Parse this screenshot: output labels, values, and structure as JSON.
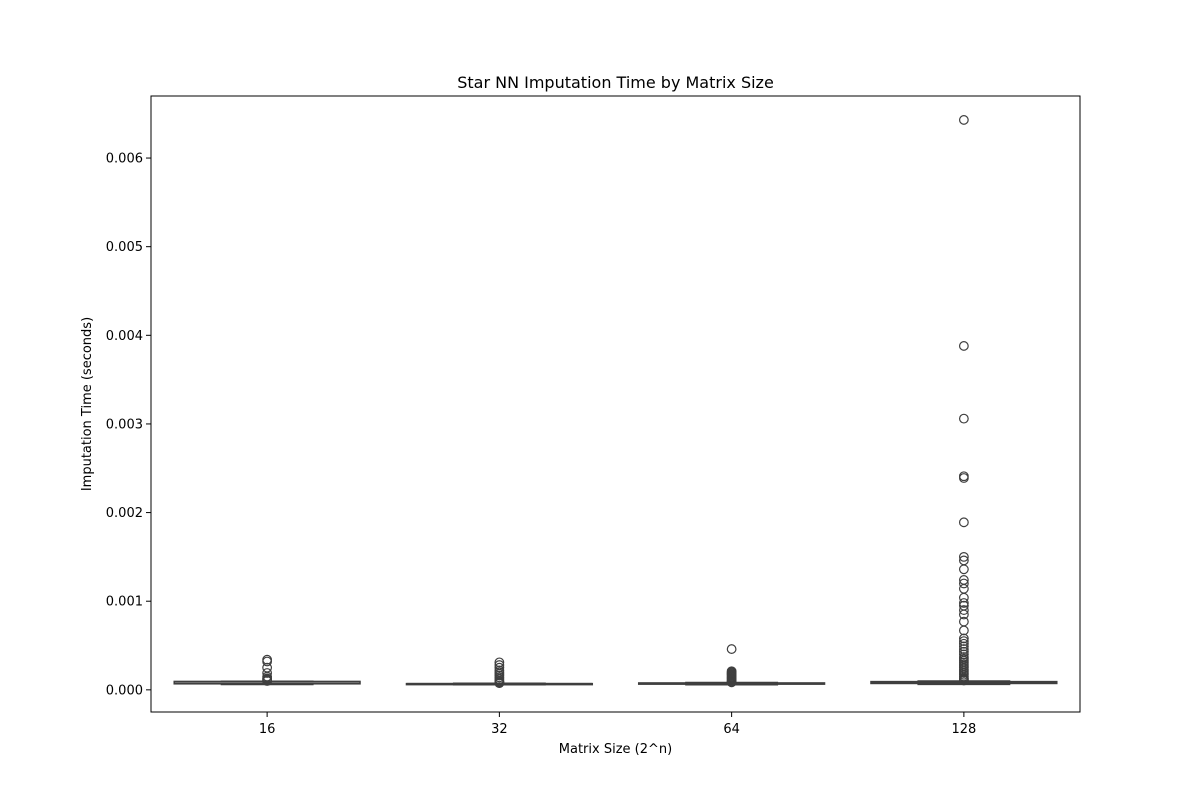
{
  "chart_data": {
    "type": "box",
    "title": "Star NN Imputation Time by Matrix Size",
    "xlabel": "Matrix Size (2^n)",
    "ylabel": "Imputation Time (seconds)",
    "categories": [
      "16",
      "32",
      "64",
      "128"
    ],
    "yticks": [
      0.0,
      0.001,
      0.002,
      0.003,
      0.004,
      0.005,
      0.006
    ],
    "ytick_labels": [
      "0.000",
      "0.001",
      "0.002",
      "0.003",
      "0.004",
      "0.005",
      "0.006"
    ],
    "ylim": [
      -0.00025,
      0.0067
    ],
    "grid": false,
    "colors": {
      "box_stroke": "#3f3f3f",
      "box_fill": "#ffffff",
      "axis": "#000000"
    },
    "boxes": [
      {
        "category": "16",
        "q1": 6.8e-05,
        "median": 7.3e-05,
        "q3": 9.5e-05,
        "whisker_low": 6e-05,
        "whisker_high": 9.7e-05,
        "outliers": [
          0.00034,
          0.00032,
          0.00025,
          0.00019,
          0.00015,
          0.00013,
          0.00012,
          0.00011,
          0.0001
        ]
      },
      {
        "category": "32",
        "q1": 6.3e-05,
        "median": 6.7e-05,
        "q3": 7e-05,
        "whisker_low": 5.8e-05,
        "whisker_high": 7.5e-05,
        "outliers": [
          0.00031,
          0.00028,
          0.00025,
          0.00022,
          0.0002,
          0.00018,
          0.00016,
          0.00014,
          0.00012,
          0.0001,
          9e-05,
          8e-05,
          7.8e-05,
          7.6e-05
        ]
      },
      {
        "category": "64",
        "q1": 6.4e-05,
        "median": 7.1e-05,
        "q3": 7.8e-05,
        "whisker_low": 5.8e-05,
        "whisker_high": 8.3e-05,
        "outliers": [
          0.00046,
          0.00021,
          0.0002,
          0.00019,
          0.00018,
          0.00017,
          0.00016,
          0.00015,
          0.00014,
          0.00013,
          0.00012,
          0.00011,
          0.0001,
          9e-05,
          8.7e-05,
          8.5e-05
        ]
      },
      {
        "category": "128",
        "q1": 7.2e-05,
        "median": 7.8e-05,
        "q3": 9.3e-05,
        "whisker_low": 6.2e-05,
        "whisker_high": 0.0001,
        "outliers": [
          0.00643,
          0.00388,
          0.00306,
          0.00241,
          0.00239,
          0.00189,
          0.0015,
          0.00146,
          0.00136,
          0.00124,
          0.0012,
          0.00114,
          0.00104,
          0.00098,
          0.00095,
          0.0009,
          0.00085,
          0.00077,
          0.00067,
          0.00058,
          0.00055,
          0.00052,
          0.00049,
          0.00046,
          0.00043,
          0.0004,
          0.00037,
          0.00035,
          0.00033,
          0.00031,
          0.00029,
          0.00027,
          0.00025,
          0.00023,
          0.00021,
          0.00019,
          0.00017,
          0.00015,
          0.00013,
          0.00012,
          0.00011,
          0.000105
        ]
      }
    ]
  }
}
